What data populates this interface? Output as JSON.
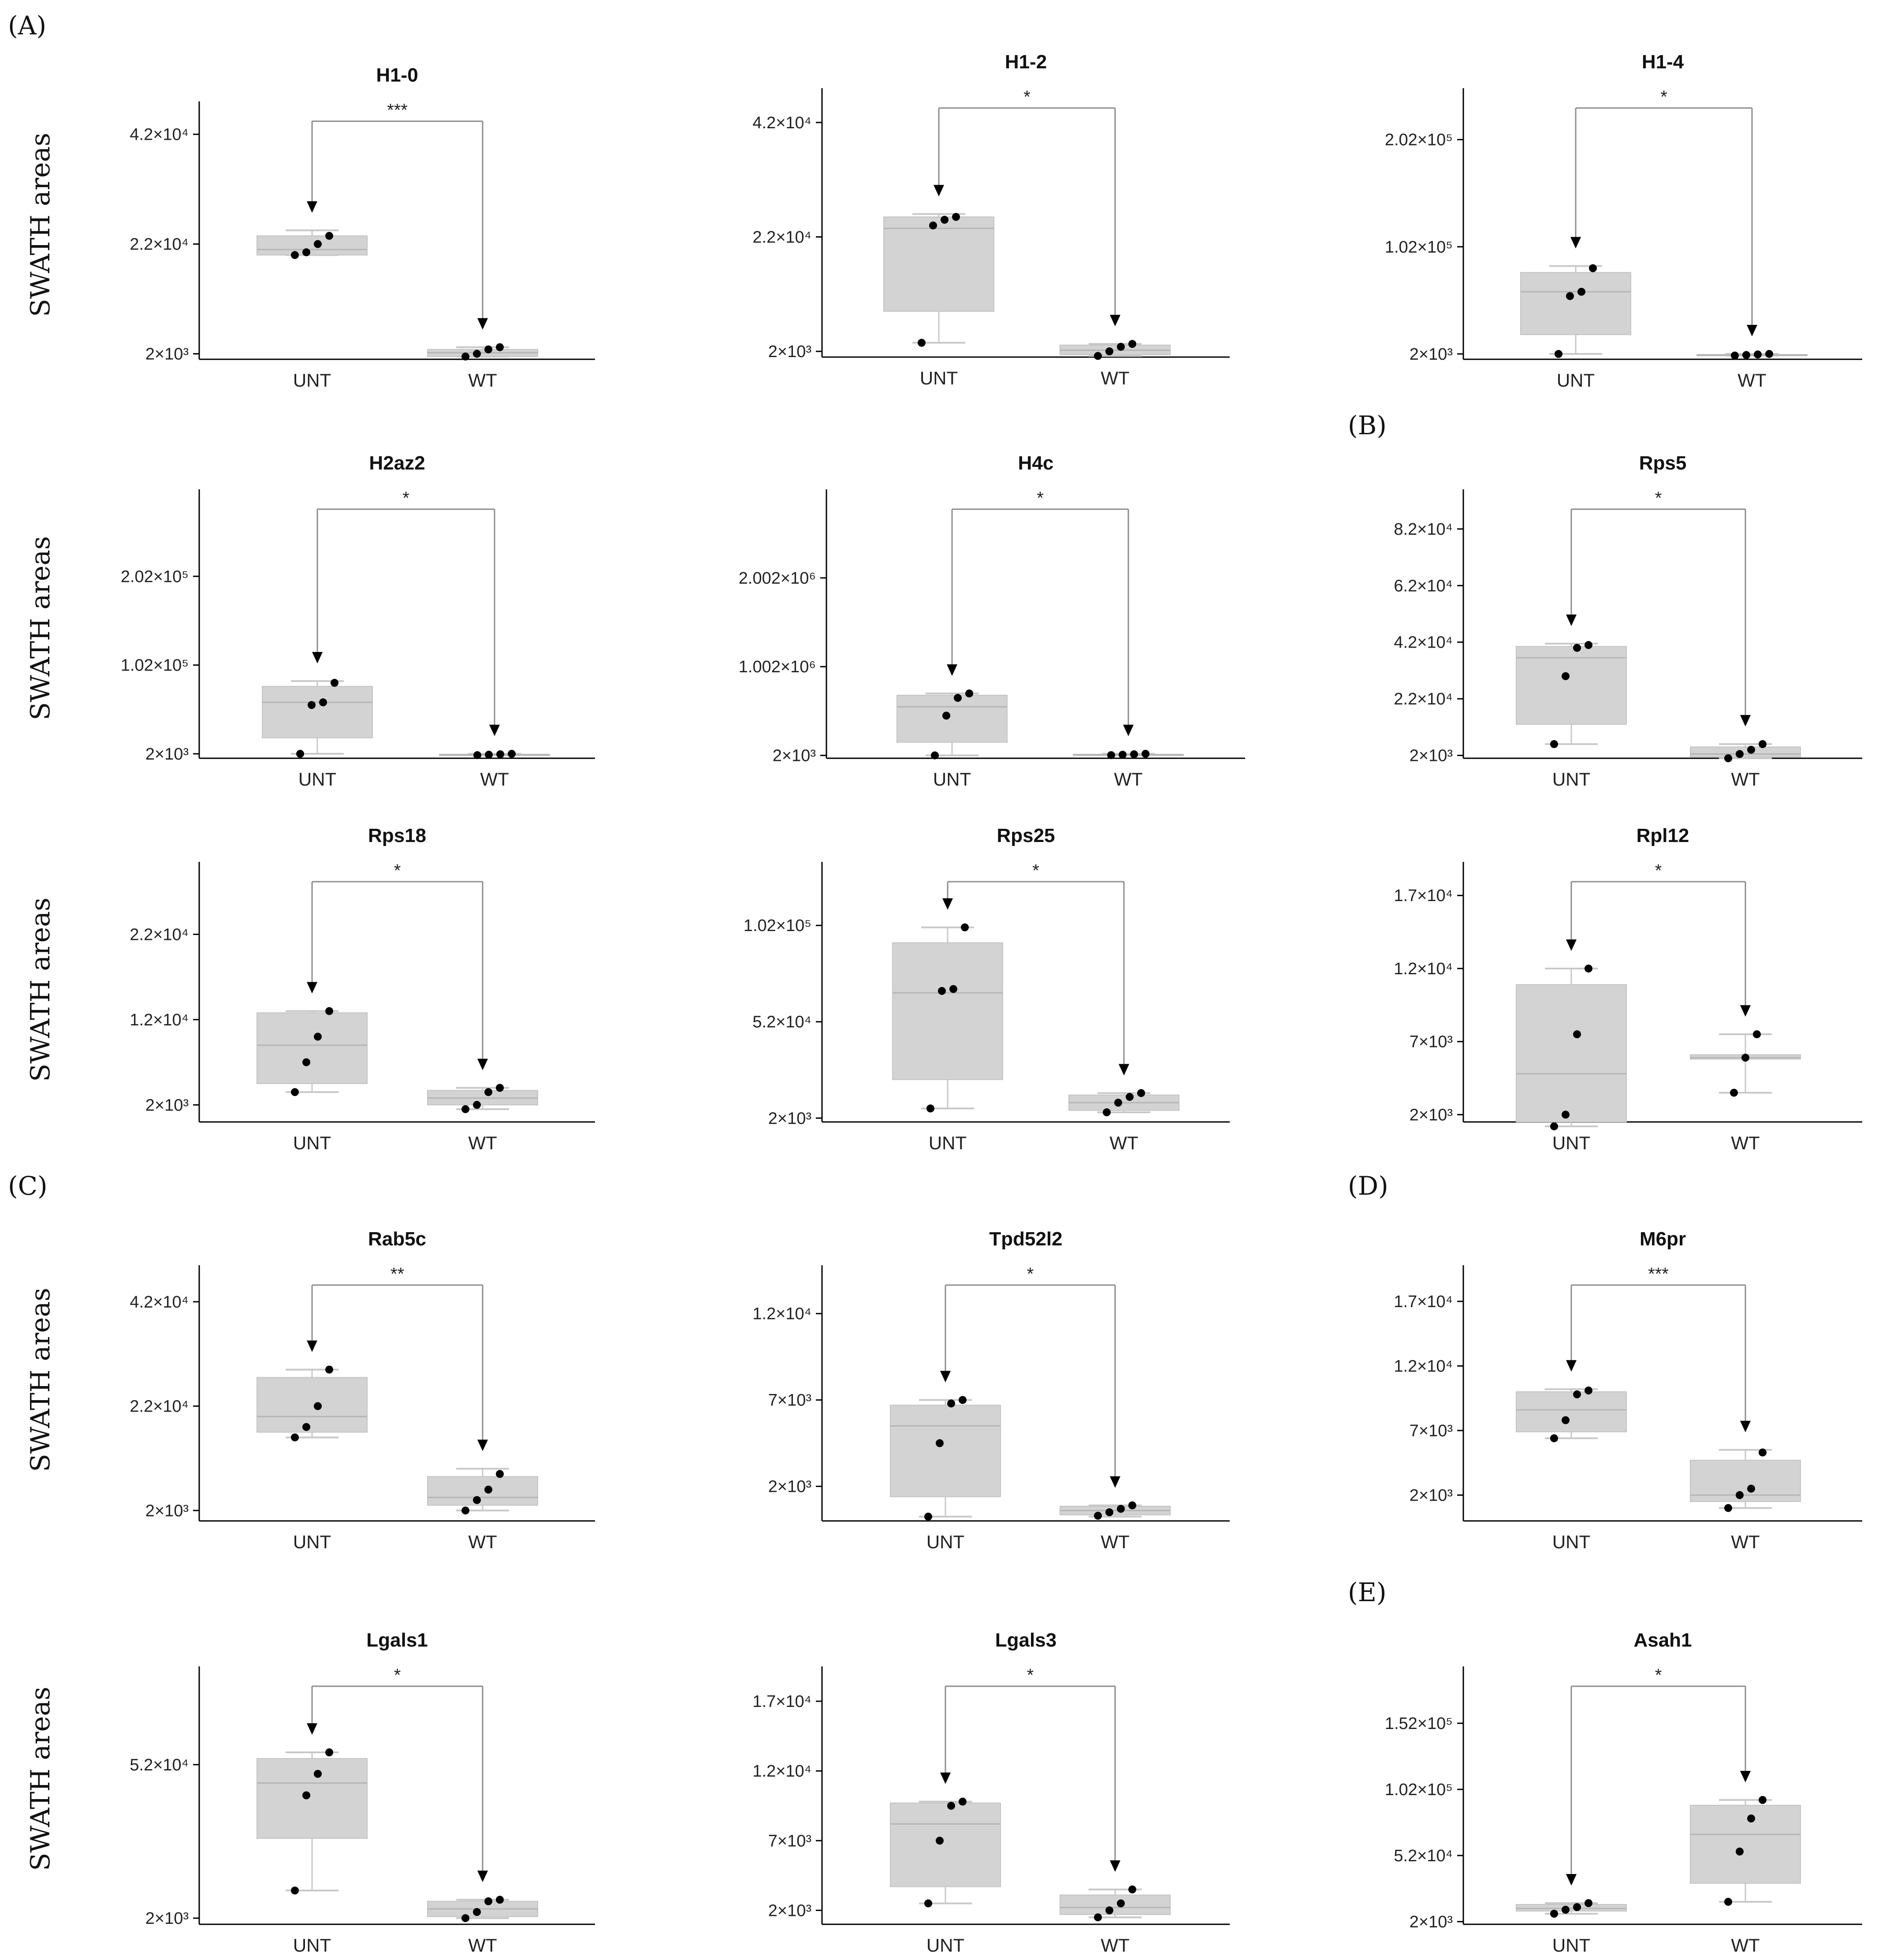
{
  "figure": {
    "y_axis_title": "SWATH areas",
    "panel_labels": [
      "(A)",
      "(B)",
      "(C)",
      "(D)",
      "(E)"
    ]
  },
  "colors": {
    "box_fill": "#d3d3d3",
    "point": "#000000",
    "axis": "#000000",
    "bracket": "#8c8c8c",
    "arrow": "#000000"
  },
  "chart_data": [
    {
      "type": "box",
      "title": "H1-0",
      "significance": "***",
      "categories": [
        "UNT",
        "WT"
      ],
      "ylim": [
        1000,
        48000
      ],
      "yticks": [
        {
          "v": 2000,
          "label": "2×10³"
        },
        {
          "v": 22000,
          "label": "2.2×10⁴"
        },
        {
          "v": 42000,
          "label": "4.2×10⁴"
        }
      ],
      "groups": [
        {
          "name": "UNT",
          "min": 20000,
          "q1": 20000,
          "median": 21000,
          "q3": 23500,
          "max": 24500,
          "points": [
            20000,
            20500,
            22000,
            23500
          ]
        },
        {
          "name": "WT",
          "min": 1500,
          "q1": 1500,
          "median": 2200,
          "q3": 2800,
          "max": 3200,
          "points": [
            1500,
            2000,
            2800,
            3200
          ]
        }
      ]
    },
    {
      "type": "box",
      "title": "H1-2",
      "significance": "*",
      "categories": [
        "UNT",
        "WT"
      ],
      "ylim": [
        1000,
        48000
      ],
      "yticks": [
        {
          "v": 2000,
          "label": "2×10³"
        },
        {
          "v": 22000,
          "label": "2.2×10⁴"
        },
        {
          "v": 42000,
          "label": "4.2×10⁴"
        }
      ],
      "groups": [
        {
          "name": "UNT",
          "min": 3500,
          "q1": 9000,
          "median": 23500,
          "q3": 25500,
          "max": 26000,
          "points": [
            3500,
            24000,
            25000,
            25500
          ]
        },
        {
          "name": "WT",
          "min": 1200,
          "q1": 1400,
          "median": 2200,
          "q3": 3100,
          "max": 3300,
          "points": [
            1200,
            2000,
            2800,
            3300
          ]
        }
      ]
    },
    {
      "type": "box",
      "title": "H1-4",
      "significance": "*",
      "categories": [
        "UNT",
        "WT"
      ],
      "ylim": [
        -3000,
        250000
      ],
      "yticks": [
        {
          "v": 2000,
          "label": "2×10³"
        },
        {
          "v": 102000,
          "label": "1.02×10⁵"
        },
        {
          "v": 202000,
          "label": "2.02×10⁵"
        }
      ],
      "groups": [
        {
          "name": "UNT",
          "min": 2000,
          "q1": 20000,
          "median": 60000,
          "q3": 78000,
          "max": 84000,
          "points": [
            2000,
            56000,
            60000,
            82000
          ]
        },
        {
          "name": "WT",
          "min": 500,
          "q1": 500,
          "median": 1000,
          "q3": 1500,
          "max": 2000,
          "points": [
            500,
            1000,
            1500,
            2000
          ]
        }
      ]
    },
    {
      "type": "box",
      "title": "H2az2",
      "significance": "*",
      "categories": [
        "UNT",
        "WT"
      ],
      "ylim": [
        -3000,
        300000
      ],
      "yticks": [
        {
          "v": 2000,
          "label": "2×10³"
        },
        {
          "v": 102000,
          "label": "1.02×10⁵"
        },
        {
          "v": 202000,
          "label": "2.02×10⁵"
        }
      ],
      "groups": [
        {
          "name": "UNT",
          "min": 2000,
          "q1": 20000,
          "median": 60000,
          "q3": 78000,
          "max": 84000,
          "points": [
            2000,
            57000,
            60000,
            82000
          ]
        },
        {
          "name": "WT",
          "min": 500,
          "q1": 500,
          "median": 1000,
          "q3": 1500,
          "max": 2000,
          "points": [
            500,
            1000,
            1500,
            2000
          ]
        }
      ]
    },
    {
      "type": "box",
      "title": "H4c",
      "significance": "*",
      "categories": [
        "UNT",
        "WT"
      ],
      "ylim": [
        -30000,
        3000000
      ],
      "yticks": [
        {
          "v": 2000,
          "label": "2×10³"
        },
        {
          "v": 1002000,
          "label": "1.002×10⁶"
        },
        {
          "v": 2002000,
          "label": "2.002×10⁶"
        }
      ],
      "groups": [
        {
          "name": "UNT",
          "min": 2000,
          "q1": 150000,
          "median": 550000,
          "q3": 680000,
          "max": 700000,
          "points": [
            2000,
            450000,
            650000,
            700000
          ]
        },
        {
          "name": "WT",
          "min": 5000,
          "q1": 5000,
          "median": 10000,
          "q3": 15000,
          "max": 20000,
          "points": [
            5000,
            10000,
            15000,
            20000
          ]
        }
      ]
    },
    {
      "type": "box",
      "title": "Rps5",
      "significance": "*",
      "categories": [
        "UNT",
        "WT"
      ],
      "ylim": [
        1000,
        96000
      ],
      "yticks": [
        {
          "v": 2000,
          "label": "2×10³"
        },
        {
          "v": 22000,
          "label": "2.2×10⁴"
        },
        {
          "v": 42000,
          "label": "4.2×10⁴"
        },
        {
          "v": 62000,
          "label": "6.2×10⁴"
        },
        {
          "v": 82000,
          "label": "8.2×10⁴"
        }
      ],
      "groups": [
        {
          "name": "UNT",
          "min": 6000,
          "q1": 13000,
          "median": 36500,
          "q3": 40500,
          "max": 41500,
          "points": [
            6000,
            30000,
            40000,
            41000
          ]
        },
        {
          "name": "WT",
          "min": 1000,
          "q1": 1500,
          "median": 2500,
          "q3": 5000,
          "max": 6000,
          "points": [
            1000,
            2500,
            4000,
            6000
          ]
        }
      ]
    },
    {
      "type": "box",
      "title": "Rps18",
      "significance": "*",
      "categories": [
        "UNT",
        "WT"
      ],
      "ylim": [
        0,
        30500
      ],
      "yticks": [
        {
          "v": 2000,
          "label": "2×10³"
        },
        {
          "v": 12000,
          "label": "1.2×10⁴"
        },
        {
          "v": 22000,
          "label": "2.2×10⁴"
        }
      ],
      "groups": [
        {
          "name": "UNT",
          "min": 3500,
          "q1": 4500,
          "median": 9000,
          "q3": 12800,
          "max": 13000,
          "points": [
            3500,
            7000,
            10000,
            13000
          ]
        },
        {
          "name": "WT",
          "min": 1500,
          "q1": 2000,
          "median": 2800,
          "q3": 3700,
          "max": 4000,
          "points": [
            1500,
            2000,
            3500,
            4000
          ]
        }
      ]
    },
    {
      "type": "box",
      "title": "Rps25",
      "significance": "*",
      "categories": [
        "UNT",
        "WT"
      ],
      "ylim": [
        0,
        135000
      ],
      "yticks": [
        {
          "v": 2000,
          "label": "2×10³"
        },
        {
          "v": 52000,
          "label": "5.2×10⁴"
        },
        {
          "v": 102000,
          "label": "1.02×10⁵"
        }
      ],
      "groups": [
        {
          "name": "UNT",
          "min": 7000,
          "q1": 22000,
          "median": 67000,
          "q3": 93000,
          "max": 101000,
          "points": [
            7000,
            68000,
            69000,
            101000
          ]
        },
        {
          "name": "WT",
          "min": 5000,
          "q1": 6000,
          "median": 10000,
          "q3": 14000,
          "max": 15000,
          "points": [
            5000,
            10000,
            13000,
            15000
          ]
        }
      ]
    },
    {
      "type": "box",
      "title": "Rpl12",
      "significance": "*",
      "categories": [
        "UNT",
        "WT"
      ],
      "ylim": [
        1500,
        19300
      ],
      "yticks": [
        {
          "v": 2000,
          "label": "2×10³"
        },
        {
          "v": 7000,
          "label": "7×10³"
        },
        {
          "v": 12000,
          "label": "1.2×10⁴"
        },
        {
          "v": 17000,
          "label": "1.7×10⁴"
        }
      ],
      "groups": [
        {
          "name": "UNT",
          "min": 1200,
          "q1": 1500,
          "median": 4800,
          "q3": 10900,
          "max": 12000,
          "points": [
            1200,
            2000,
            7500,
            12000
          ]
        },
        {
          "name": "WT",
          "min": 3500,
          "q1": 5800,
          "median": 5900,
          "q3": 6100,
          "max": 7500,
          "points": [
            3500,
            5900,
            7500
          ]
        }
      ]
    },
    {
      "type": "box",
      "title": "Rab5c",
      "significance": "**",
      "categories": [
        "UNT",
        "WT"
      ],
      "ylim": [
        0,
        49000
      ],
      "yticks": [
        {
          "v": 2000,
          "label": "2×10³"
        },
        {
          "v": 22000,
          "label": "2.2×10⁴"
        },
        {
          "v": 42000,
          "label": "4.2×10⁴"
        }
      ],
      "groups": [
        {
          "name": "UNT",
          "min": 16000,
          "q1": 17000,
          "median": 20000,
          "q3": 27500,
          "max": 29000,
          "points": [
            16000,
            18000,
            22000,
            29000
          ]
        },
        {
          "name": "WT",
          "min": 2000,
          "q1": 3000,
          "median": 4500,
          "q3": 8500,
          "max": 10000,
          "points": [
            2000,
            4000,
            6000,
            9000
          ]
        }
      ]
    },
    {
      "type": "box",
      "title": "Tpd52l2",
      "significance": "*",
      "categories": [
        "UNT",
        "WT"
      ],
      "ylim": [
        0,
        14800
      ],
      "yticks": [
        {
          "v": 2000,
          "label": "2×10³"
        },
        {
          "v": 7000,
          "label": "7×10³"
        },
        {
          "v": 12000,
          "label": "1.2×10⁴"
        }
      ],
      "groups": [
        {
          "name": "UNT",
          "min": 250,
          "q1": 1400,
          "median": 5500,
          "q3": 6700,
          "max": 7000,
          "points": [
            250,
            4500,
            6800,
            7000
          ]
        },
        {
          "name": "WT",
          "min": 250,
          "q1": 350,
          "median": 600,
          "q3": 850,
          "max": 900,
          "points": [
            300,
            500,
            700,
            900
          ]
        }
      ]
    },
    {
      "type": "box",
      "title": "M6pr",
      "significance": "***",
      "categories": [
        "UNT",
        "WT"
      ],
      "ylim": [
        0,
        19800
      ],
      "yticks": [
        {
          "v": 2000,
          "label": "2×10³"
        },
        {
          "v": 7000,
          "label": "7×10³"
        },
        {
          "v": 12000,
          "label": "1.2×10⁴"
        },
        {
          "v": 17000,
          "label": "1.7×10⁴"
        }
      ],
      "groups": [
        {
          "name": "UNT",
          "min": 6400,
          "q1": 6900,
          "median": 8600,
          "q3": 10000,
          "max": 10200,
          "points": [
            6400,
            7800,
            9800,
            10100
          ]
        },
        {
          "name": "WT",
          "min": 1000,
          "q1": 1500,
          "median": 2000,
          "q3": 4700,
          "max": 5500,
          "points": [
            1000,
            2000,
            2500,
            5300
          ]
        }
      ]
    },
    {
      "type": "box",
      "title": "Lgals1",
      "significance": "*",
      "categories": [
        "UNT",
        "WT"
      ],
      "ylim": [
        0,
        84000
      ],
      "yticks": [
        {
          "v": 2000,
          "label": "2×10³"
        },
        {
          "v": 52000,
          "label": "5.2×10⁴"
        }
      ],
      "groups": [
        {
          "name": "UNT",
          "min": 11000,
          "q1": 28000,
          "median": 46000,
          "q3": 54000,
          "max": 56000,
          "points": [
            11000,
            42000,
            49000,
            56000
          ]
        },
        {
          "name": "WT",
          "min": 2000,
          "q1": 2500,
          "median": 5000,
          "q3": 7500,
          "max": 8000,
          "points": [
            2000,
            4000,
            7500,
            8000
          ]
        }
      ]
    },
    {
      "type": "box",
      "title": "Lgals3",
      "significance": "*",
      "categories": [
        "UNT",
        "WT"
      ],
      "ylim": [
        1000,
        19500
      ],
      "yticks": [
        {
          "v": 2000,
          "label": "2×10³"
        },
        {
          "v": 7000,
          "label": "7×10³"
        },
        {
          "v": 12000,
          "label": "1.2×10⁴"
        },
        {
          "v": 17000,
          "label": "1.7×10⁴"
        }
      ],
      "groups": [
        {
          "name": "UNT",
          "min": 2500,
          "q1": 3700,
          "median": 8200,
          "q3": 9700,
          "max": 9800,
          "points": [
            2500,
            7000,
            9500,
            9800
          ]
        },
        {
          "name": "WT",
          "min": 1500,
          "q1": 1700,
          "median": 2200,
          "q3": 3100,
          "max": 3500,
          "points": [
            1500,
            2000,
            2500,
            3500
          ]
        }
      ]
    },
    {
      "type": "box",
      "title": "Asah1",
      "significance": "*",
      "categories": [
        "UNT",
        "WT"
      ],
      "ylim": [
        0,
        195000
      ],
      "yticks": [
        {
          "v": 2000,
          "label": "2×10³"
        },
        {
          "v": 52000,
          "label": "5.2×10⁴"
        },
        {
          "v": 102000,
          "label": "1.02×10⁵"
        },
        {
          "v": 152000,
          "label": "1.52×10⁵"
        }
      ],
      "groups": [
        {
          "name": "UNT",
          "min": 8000,
          "q1": 10000,
          "median": 12000,
          "q3": 15000,
          "max": 16000,
          "points": [
            8000,
            11000,
            13000,
            16000
          ]
        },
        {
          "name": "WT",
          "min": 17000,
          "q1": 31000,
          "median": 68000,
          "q3": 90000,
          "max": 94000,
          "points": [
            17000,
            55000,
            80000,
            94000
          ]
        }
      ]
    }
  ]
}
